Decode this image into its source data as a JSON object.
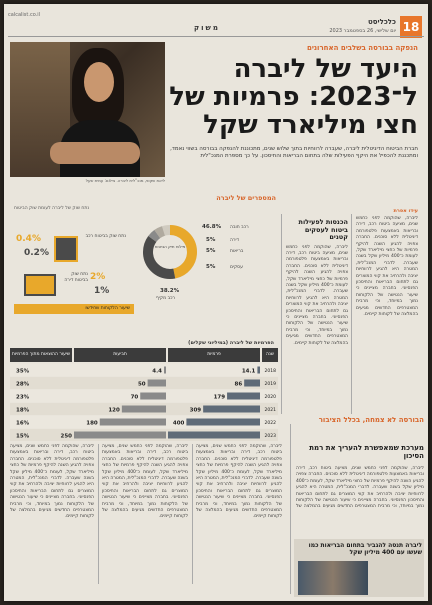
{
  "header": {
    "page_number": "18",
    "publication": "כלכליסט",
    "date_line": "יום שלישי, 26 בספטמבר 2023",
    "section": "משוק",
    "masthead_small": "calcalist.co.il"
  },
  "article": {
    "kicker": "הנפקה בבורסה בשלבים האחרונים",
    "title": "היעד של ליברה ל־2023: פרמיות של חצי מיליארד שקל",
    "deck": "חברת הביטוח הדיגיטלית ליברה, שעברה לרווחיות בתוך שלוש שנים, מתכוננת להנפקה בבורסה בשווי נאמד, ומתכננת להכפיל את היקף הפעילות שלה בתחום הבריאות והחיסכון. על כך מספרת המנכ\"לית",
    "author": "עידו אפרת",
    "photo_caption": "ליאת שקופ, מנכ\"לית ליברה. צילום: עמית שעל",
    "subhead_1": "הכנסות לפעילות ביטוח לעסקים קטנים",
    "body_text": "ליברה, שהוקמה לפני כחמש שנים, מציעה ביטוח רכב, דירה ובריאות באמצעות פלטפורמה דיגיטלית ללא סוכנים. החברה צפויה להגיע השנה להיקף פרמיות של כחצי מיליארד שקל, לעומת כ־400 מיליון שקל בשנה שעברה. לדברי המנכ\"לית, המטרה היא להגיע לרווחיות יציבה ולהרחיב את קווי המוצרים גם לתחום הבריאות והחיסכון הפנסיוני. בחברה מציינים כי שיעור הנטישה של הלקוחות נמוך במיוחד, וכי מרבית המצטרפים החדשים מגיעים בהמלצה של לקוחות קיימים."
  },
  "infographic": {
    "title": "המספרים של ליברה",
    "subtitle": "נתונים נבחרים, 2023",
    "donut_center": "פילוח תיק הביטוח",
    "donut_pct_main": "46.8%",
    "donut_pct_2": "38.2%",
    "donut_pct_3": "5%",
    "donut_pct_4": "5%",
    "donut_pct_5": "5%",
    "donut_lbl_1": "רכב חובה",
    "donut_lbl_2": "רכב מקיף",
    "donut_lbl_3": "דירה",
    "donut_lbl_4": "בריאות",
    "donut_lbl_5": "עסקים",
    "stats_title": "נתח שוק של ליברה לעומת שוק הביטוח",
    "stat_1_pct": "0.4%",
    "stat_1_pct_b": "0.2%",
    "stat_1_label": "נתח שוק בביטוח רכב",
    "stat_2_pct": "2%",
    "stat_2_pct_b": "1%",
    "stat_2_label": "נתח שוק בביטוח דירה",
    "legend_label": "שיעור הלקוחות שחידשו"
  },
  "table": {
    "title": "הפרמיות של ליברה (במיליוני שקלים)",
    "col_year": "שנה",
    "col_premiums": "פרמיות",
    "col_claims": "תביעות",
    "col_ratio": "שיעור ההוצאות מתוך הפרמיות"
  },
  "chart_data": {
    "type": "bar",
    "title": "הפרמיות של ליברה (במיליוני שקלים)",
    "categories": [
      "2018",
      "2019",
      "2020",
      "2021",
      "2022",
      "2023"
    ],
    "series": [
      {
        "name": "פרמיות",
        "values": [
          14.1,
          86,
          179,
          309,
          400,
          500
        ]
      },
      {
        "name": "תביעות",
        "values": [
          4.4,
          50,
          70,
          120,
          180,
          250
        ]
      }
    ],
    "ratio_labels": [
      "35%",
      "28%",
      "23%",
      "18%",
      "16%",
      "15%"
    ],
    "xlabel": "",
    "ylabel": ""
  },
  "bottom": {
    "headline_1": "מערכת שמאפשרת להעריך את רמת הסיכון",
    "headline_2": "הבורסה לא צמחה, בכלל הציבור",
    "headline_3": "ליברה תנסה להגביר בתחום הבריאות כמו שעשו עם 400 מיליון שקל"
  },
  "colors": {
    "accent": "#e8762b",
    "dark_bar": "#3b3b3b"
  }
}
